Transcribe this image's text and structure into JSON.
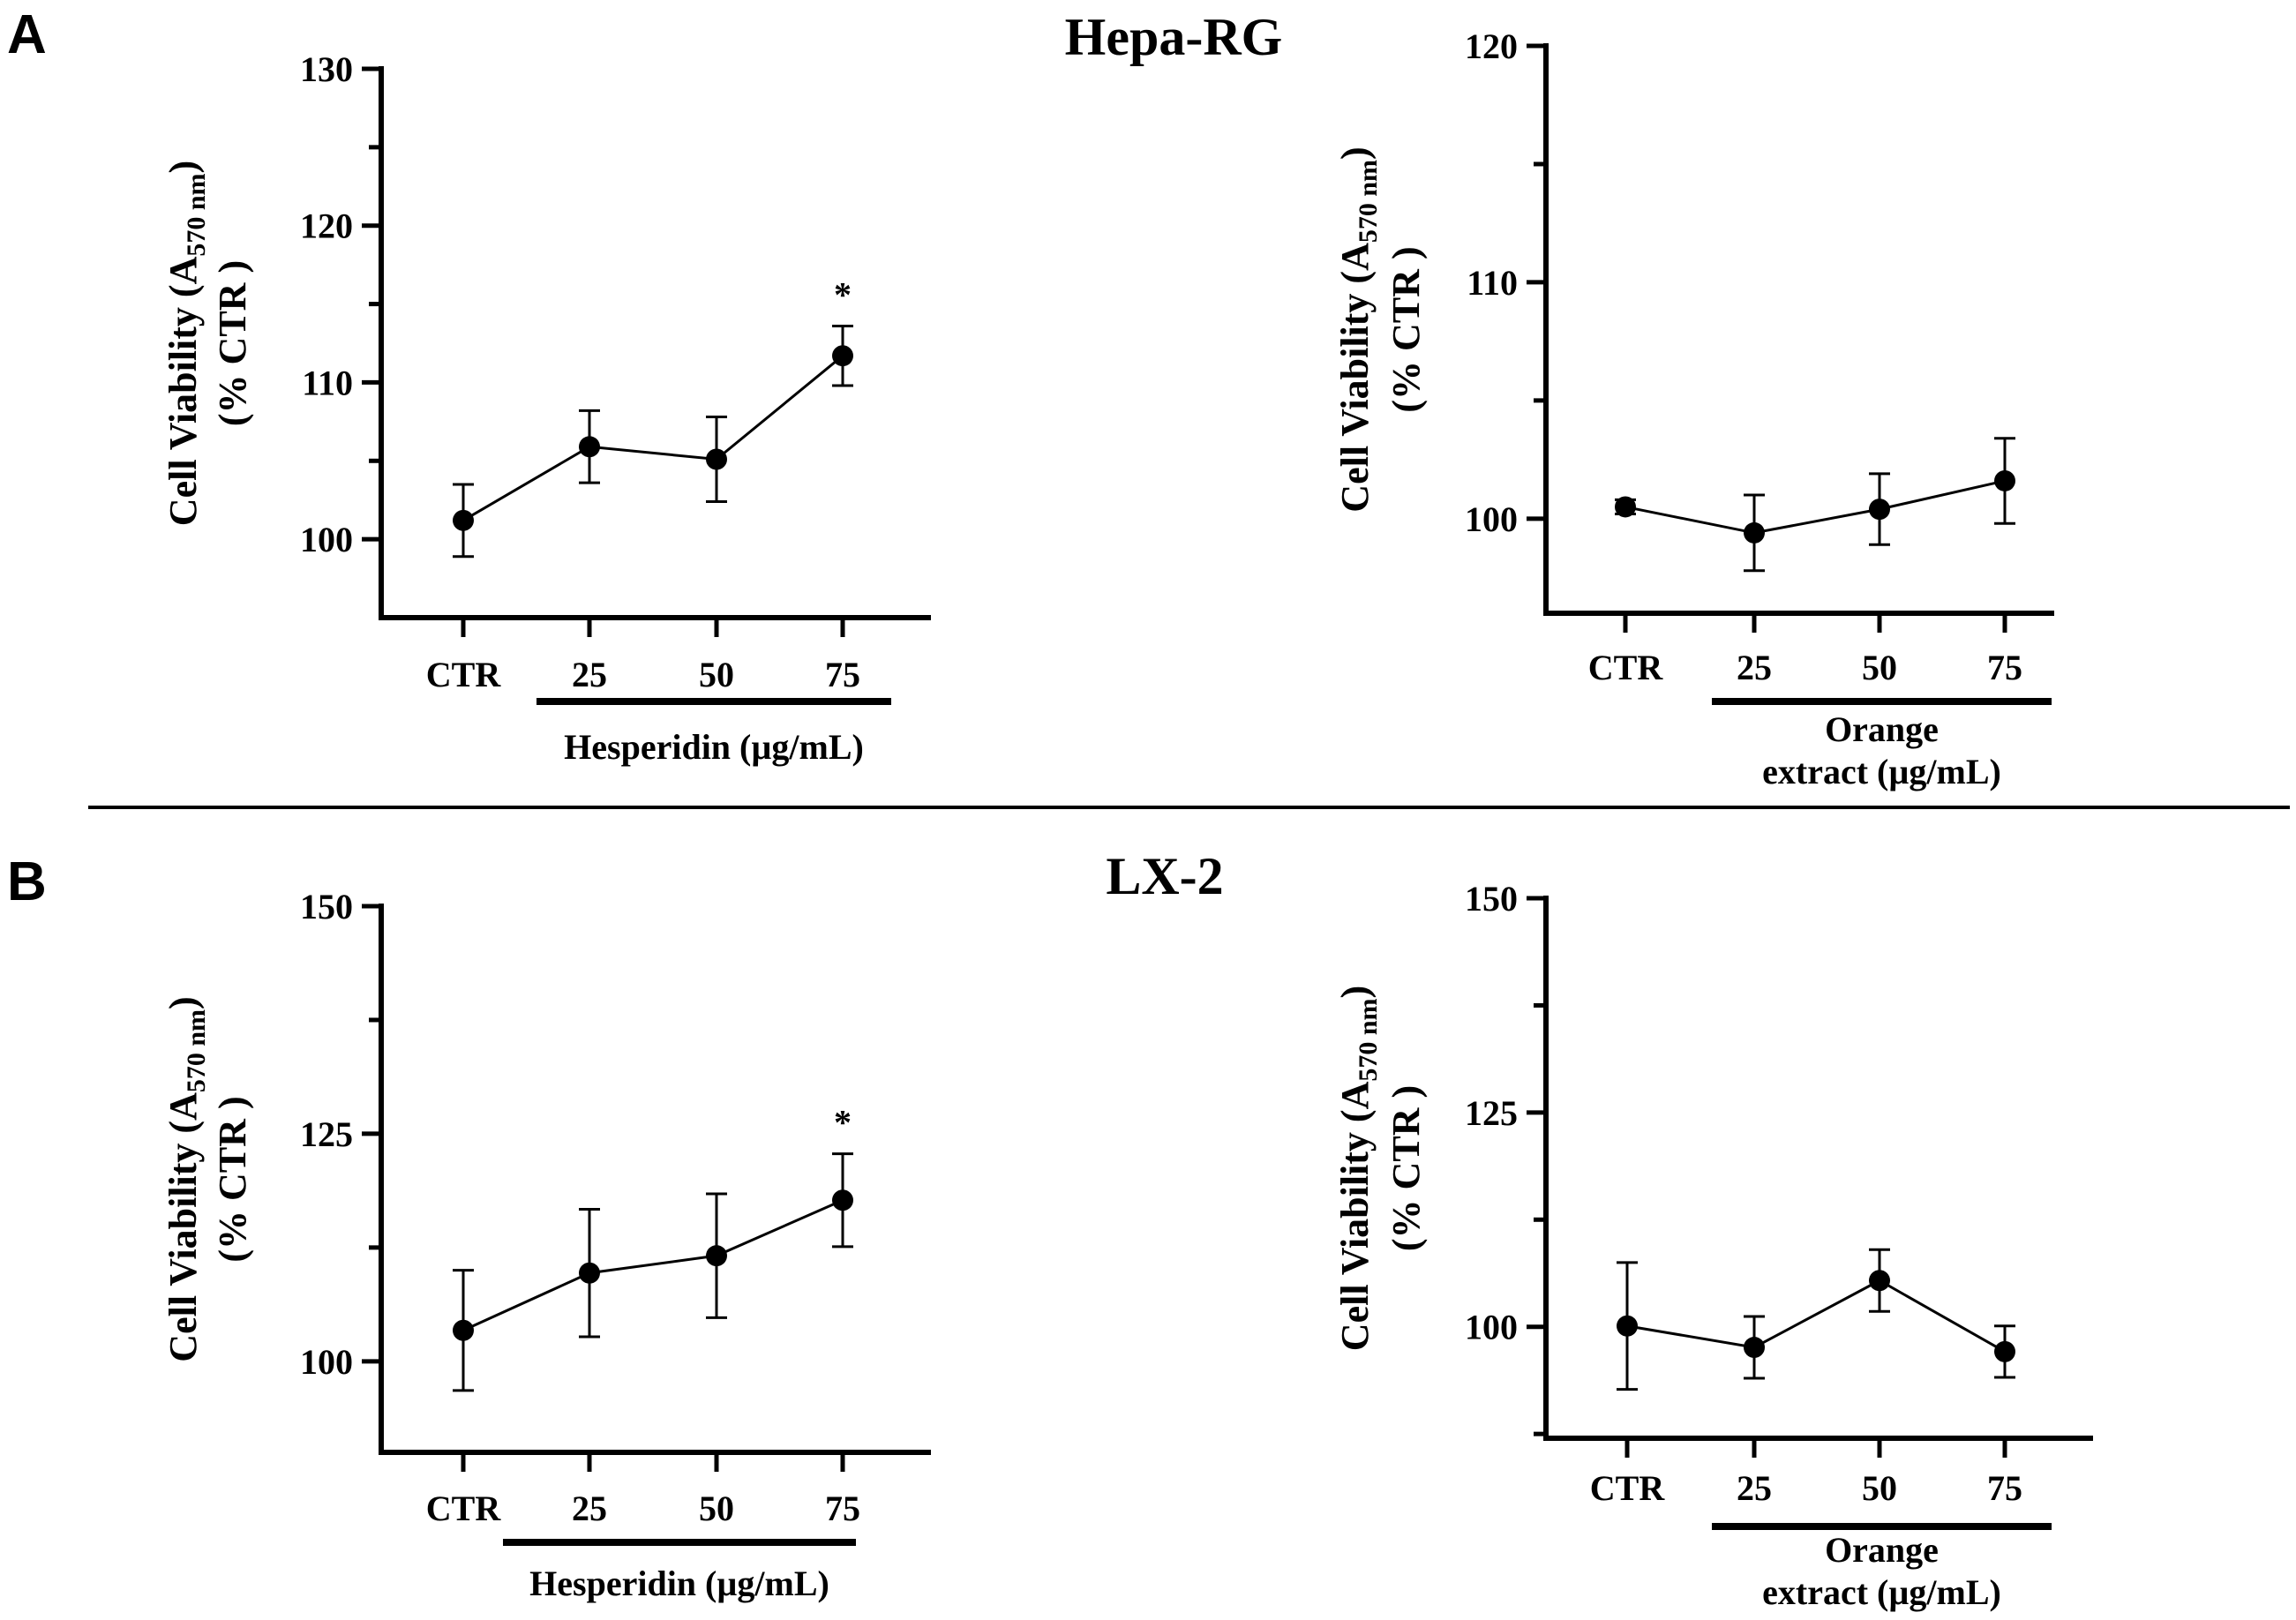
{
  "panels": {
    "A": {
      "letter": "A",
      "title": "Hepa-RG"
    },
    "B": {
      "letter": "B",
      "title": "LX-2"
    }
  },
  "chart_data": [
    {
      "type": "line",
      "panel": "A",
      "cell_line": "Hepa-RG",
      "categories": [
        "CTR",
        "25",
        "50",
        "75"
      ],
      "values": [
        101.2,
        105.9,
        105.1,
        111.7
      ],
      "errors": [
        2.3,
        2.3,
        2.7,
        1.9
      ],
      "significance": [
        "",
        "",
        "",
        "*"
      ],
      "ylabel": "Cell Viability  (A570 nm)",
      "ylabel_main": "Cell Viability  (A",
      "ylabel_sub": "570 nm",
      "ylabel_close": ")",
      "ylabel2": "(% CTR )",
      "ylim": [
        95,
        130
      ],
      "yticks": [
        100,
        110,
        120,
        130
      ],
      "yminor": [
        105,
        115,
        125
      ],
      "treatment_label": "Hesperidin (µg/mL)",
      "treatment_label_lines": [
        "Hesperidin (µg/mL)"
      ]
    },
    {
      "type": "line",
      "panel": "A",
      "cell_line": "Hepa-RG",
      "categories": [
        "CTR",
        "25",
        "50",
        "75"
      ],
      "values": [
        100.5,
        99.4,
        100.4,
        101.6
      ],
      "errors": [
        0.3,
        1.6,
        1.5,
        1.8
      ],
      "significance": [
        "",
        "",
        "",
        ""
      ],
      "ylabel": "Cell Viability  (A570 nm)",
      "ylabel_main": "Cell Viability  (A",
      "ylabel_sub": "570 nm",
      "ylabel_close": ")",
      "ylabel2": "(% CTR )",
      "ylim": [
        96,
        120
      ],
      "yticks": [
        100,
        110,
        120
      ],
      "yminor": [
        105,
        115
      ],
      "treatment_label": "Orange extract (µg/mL)",
      "treatment_label_lines": [
        "Orange",
        "extract (µg/mL)"
      ]
    },
    {
      "type": "line",
      "panel": "B",
      "cell_line": "LX-2",
      "categories": [
        "CTR",
        "25",
        "50",
        "75"
      ],
      "values": [
        103.4,
        109.7,
        111.6,
        117.7
      ],
      "errors": [
        6.6,
        7.0,
        6.8,
        5.1
      ],
      "significance": [
        "",
        "",
        "",
        "*"
      ],
      "ylabel": "Cell Viability  (A570 nm)",
      "ylabel_main": "Cell Viability  (A",
      "ylabel_sub": "570 nm",
      "ylabel_close": ")",
      "ylabel2": "(% CTR )",
      "ylim": [
        90,
        150
      ],
      "yticks": [
        100,
        125,
        150
      ],
      "yminor": [
        112.5,
        137.5
      ],
      "treatment_label": "Hesperidin (µg/mL)",
      "treatment_label_lines": [
        "Hesperidin (µg/mL)"
      ]
    },
    {
      "type": "line",
      "panel": "B",
      "cell_line": "LX-2",
      "categories": [
        "CTR",
        "25",
        "50",
        "75"
      ],
      "values": [
        100.1,
        97.6,
        105.4,
        97.1
      ],
      "errors": [
        7.4,
        3.6,
        3.6,
        3.0
      ],
      "significance": [
        "",
        "",
        "",
        ""
      ],
      "ylabel": "Cell Viability  (A570 nm)",
      "ylabel_main": "Cell Viability  (A",
      "ylabel_sub": "570 nm",
      "ylabel_close": ")",
      "ylabel2": "(% CTR )",
      "ylim": [
        87,
        150
      ],
      "yticks": [
        100,
        125,
        150
      ],
      "yminor": [
        112.5,
        137.5,
        87.5
      ],
      "treatment_label": "Orange extract (µg/mL)",
      "treatment_label_lines": [
        "Orange",
        "extract (µg/mL)"
      ]
    }
  ]
}
